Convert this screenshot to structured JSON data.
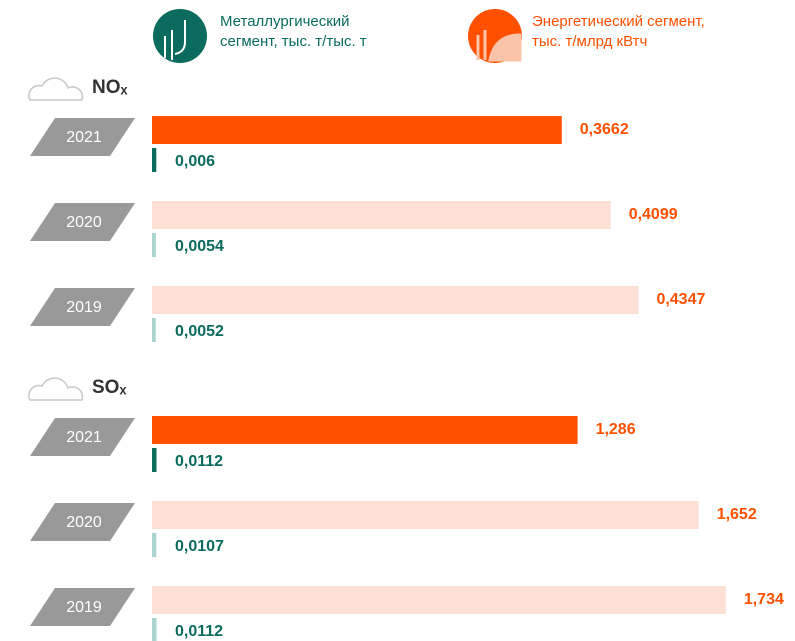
{
  "legend": [
    {
      "name": "Металлургический\nсегмент, тыс. т/тыс. т",
      "color": "#0a6b5e"
    },
    {
      "name": "Энергетический сегмент,\nтыс. т/млрд кВтч",
      "color": "#ff5000"
    }
  ],
  "chart_data": [
    {
      "type": "bar",
      "title": "NOₓ",
      "categories": [
        "2021",
        "2020",
        "2019"
      ],
      "xlim": [
        0,
        0.5746
      ],
      "x2lim": [
        0,
        0.9
      ],
      "series": [
        {
          "axis": "x",
          "values": [
            0.3662,
            0.4099,
            0.4347
          ],
          "value_labels": [
            "0,3662",
            "0,4099",
            "0,4347"
          ],
          "colors": [
            "#ff5000",
            "#fde0d3",
            "#fde0d3"
          ],
          "label_color": "#ff5000"
        },
        {
          "axis": "x2",
          "values": [
            0.006,
            0.0054,
            0.0052
          ],
          "value_labels": [
            "0,006",
            "0,0054",
            "0,0052"
          ],
          "colors": [
            "#0a6b5e",
            "#a9d4cf",
            "#a9d4cf"
          ],
          "label_color": "#0a6b5e"
        }
      ]
    },
    {
      "type": "bar",
      "title": "SOₓ",
      "categories": [
        "2021",
        "2020",
        "2019"
      ],
      "xlim": [
        0,
        1.943
      ],
      "x2lim": [
        0,
        1.6
      ],
      "series": [
        {
          "axis": "x",
          "values": [
            1.286,
            1.652,
            1.734
          ],
          "value_labels": [
            "1,286",
            "1,652",
            "1,734"
          ],
          "colors": [
            "#ff5000",
            "#fde0d3",
            "#fde0d3"
          ],
          "label_color": "#ff5000"
        },
        {
          "axis": "x2",
          "values": [
            0.0112,
            0.0107,
            0.0112
          ],
          "value_labels": [
            "0,0112",
            "0,0107",
            "0,0112"
          ],
          "colors": [
            "#0a6b5e",
            "#a9d4cf",
            "#a9d4cf"
          ],
          "label_color": "#0a6b5e"
        }
      ]
    }
  ]
}
